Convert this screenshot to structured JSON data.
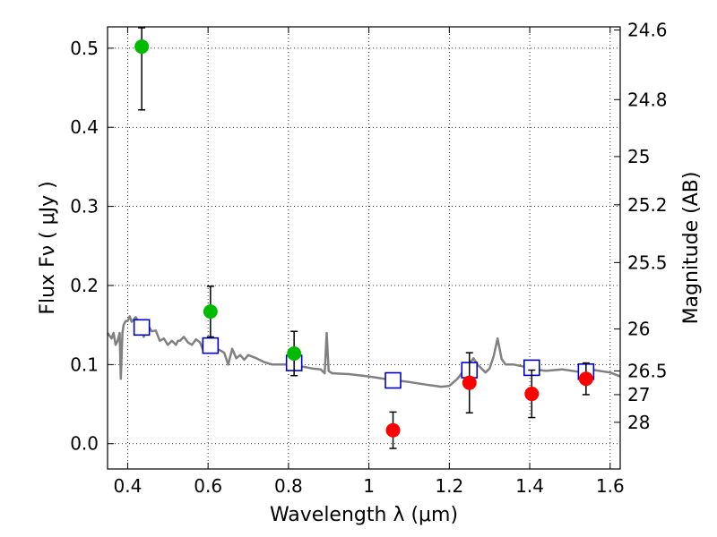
{
  "chart_data": {
    "type": "scatter",
    "xlabel": "Wavelength  λ (μm)",
    "ylabel": "Flux  Fν  ( μJy )",
    "ylabel_right": "Magnitude (AB)",
    "xlim": [
      0.35,
      1.625
    ],
    "ylim": [
      -0.032,
      0.527
    ],
    "grid": true,
    "x_ticks": [
      {
        "value": 0.4,
        "label": "0.4"
      },
      {
        "value": 0.6,
        "label": "0.6"
      },
      {
        "value": 0.8,
        "label": "0.8"
      },
      {
        "value": 1.0,
        "label": "1"
      },
      {
        "value": 1.2,
        "label": "1.2"
      },
      {
        "value": 1.4,
        "label": "1.4"
      },
      {
        "value": 1.6,
        "label": "1.6"
      }
    ],
    "y_ticks": [
      {
        "value": 0.0,
        "label": "0.0"
      },
      {
        "value": 0.1,
        "label": "0.1"
      },
      {
        "value": 0.2,
        "label": "0.2"
      },
      {
        "value": 0.3,
        "label": "0.3"
      },
      {
        "value": 0.4,
        "label": "0.4"
      },
      {
        "value": 0.5,
        "label": "0.5"
      }
    ],
    "right_ticks": [
      {
        "flux": 0.523,
        "label": "24.6"
      },
      {
        "flux": 0.435,
        "label": "24.8"
      },
      {
        "flux": 0.363,
        "label": "25"
      },
      {
        "flux": 0.302,
        "label": "25.2"
      },
      {
        "flux": 0.229,
        "label": "25.5"
      },
      {
        "flux": 0.145,
        "label": "26"
      },
      {
        "flux": 0.092,
        "label": "26.5"
      },
      {
        "flux": 0.062,
        "label": "27"
      },
      {
        "flux": 0.027,
        "label": "28"
      }
    ],
    "colors": {
      "template": "#808080",
      "model": "#0000cc",
      "green": "#00bb00",
      "red": "#ff0000",
      "errorbar": "#000000"
    },
    "series": [
      {
        "kind": "template_spectrum",
        "x": [
          0.35,
          0.36,
          0.365,
          0.37,
          0.375,
          0.38,
          0.383,
          0.387,
          0.39,
          0.395,
          0.4,
          0.405,
          0.41,
          0.42,
          0.43,
          0.44,
          0.45,
          0.46,
          0.47,
          0.48,
          0.49,
          0.5,
          0.51,
          0.52,
          0.525,
          0.53,
          0.54,
          0.55,
          0.56,
          0.57,
          0.58,
          0.59,
          0.6,
          0.61,
          0.62,
          0.63,
          0.64,
          0.65,
          0.66,
          0.67,
          0.68,
          0.69,
          0.7,
          0.72,
          0.74,
          0.76,
          0.78,
          0.8,
          0.82,
          0.84,
          0.86,
          0.88,
          0.89,
          0.895,
          0.9,
          0.905,
          0.91,
          0.95,
          1.0,
          1.05,
          1.1,
          1.15,
          1.18,
          1.2,
          1.22,
          1.24,
          1.26,
          1.27,
          1.28,
          1.29,
          1.3,
          1.31,
          1.32,
          1.33,
          1.34,
          1.36,
          1.38,
          1.4,
          1.44,
          1.48,
          1.52,
          1.56,
          1.6,
          1.625
        ],
        "y": [
          0.14,
          0.133,
          0.14,
          0.125,
          0.13,
          0.14,
          0.082,
          0.14,
          0.15,
          0.155,
          0.155,
          0.161,
          0.154,
          0.16,
          0.152,
          0.135,
          0.15,
          0.142,
          0.143,
          0.13,
          0.133,
          0.125,
          0.13,
          0.125,
          0.13,
          0.13,
          0.135,
          0.128,
          0.125,
          0.132,
          0.128,
          0.115,
          0.123,
          0.125,
          0.12,
          0.118,
          0.115,
          0.1,
          0.12,
          0.108,
          0.112,
          0.106,
          0.112,
          0.108,
          0.103,
          0.1,
          0.1,
          0.1,
          0.098,
          0.097,
          0.095,
          0.094,
          0.089,
          0.14,
          0.092,
          0.09,
          0.089,
          0.088,
          0.085,
          0.081,
          0.078,
          0.074,
          0.072,
          0.073,
          0.082,
          0.095,
          0.108,
          0.1,
          0.095,
          0.09,
          0.095,
          0.11,
          0.133,
          0.107,
          0.1,
          0.1,
          0.098,
          0.095,
          0.092,
          0.094,
          0.091,
          0.093,
          0.09,
          0.085
        ]
      },
      {
        "name": "",
        "kind": "model_bands",
        "x": [
          0.435,
          0.606,
          0.814,
          1.06,
          1.25,
          1.405,
          1.54
        ],
        "y": [
          0.147,
          0.124,
          0.102,
          0.08,
          0.093,
          0.096,
          0.091
        ]
      },
      {
        "name": "",
        "kind": "green_detections",
        "x": [
          0.435,
          0.606,
          0.814
        ],
        "y": [
          0.502,
          0.167,
          0.114
        ],
        "err": [
          0.08,
          0.032,
          0.028
        ]
      },
      {
        "name": "",
        "kind": "red_detections",
        "x": [
          1.06,
          1.25,
          1.405,
          1.54
        ],
        "y": [
          0.017,
          0.077,
          0.063,
          0.082
        ],
        "err": [
          0.023,
          0.038,
          0.03,
          0.02
        ]
      }
    ]
  }
}
